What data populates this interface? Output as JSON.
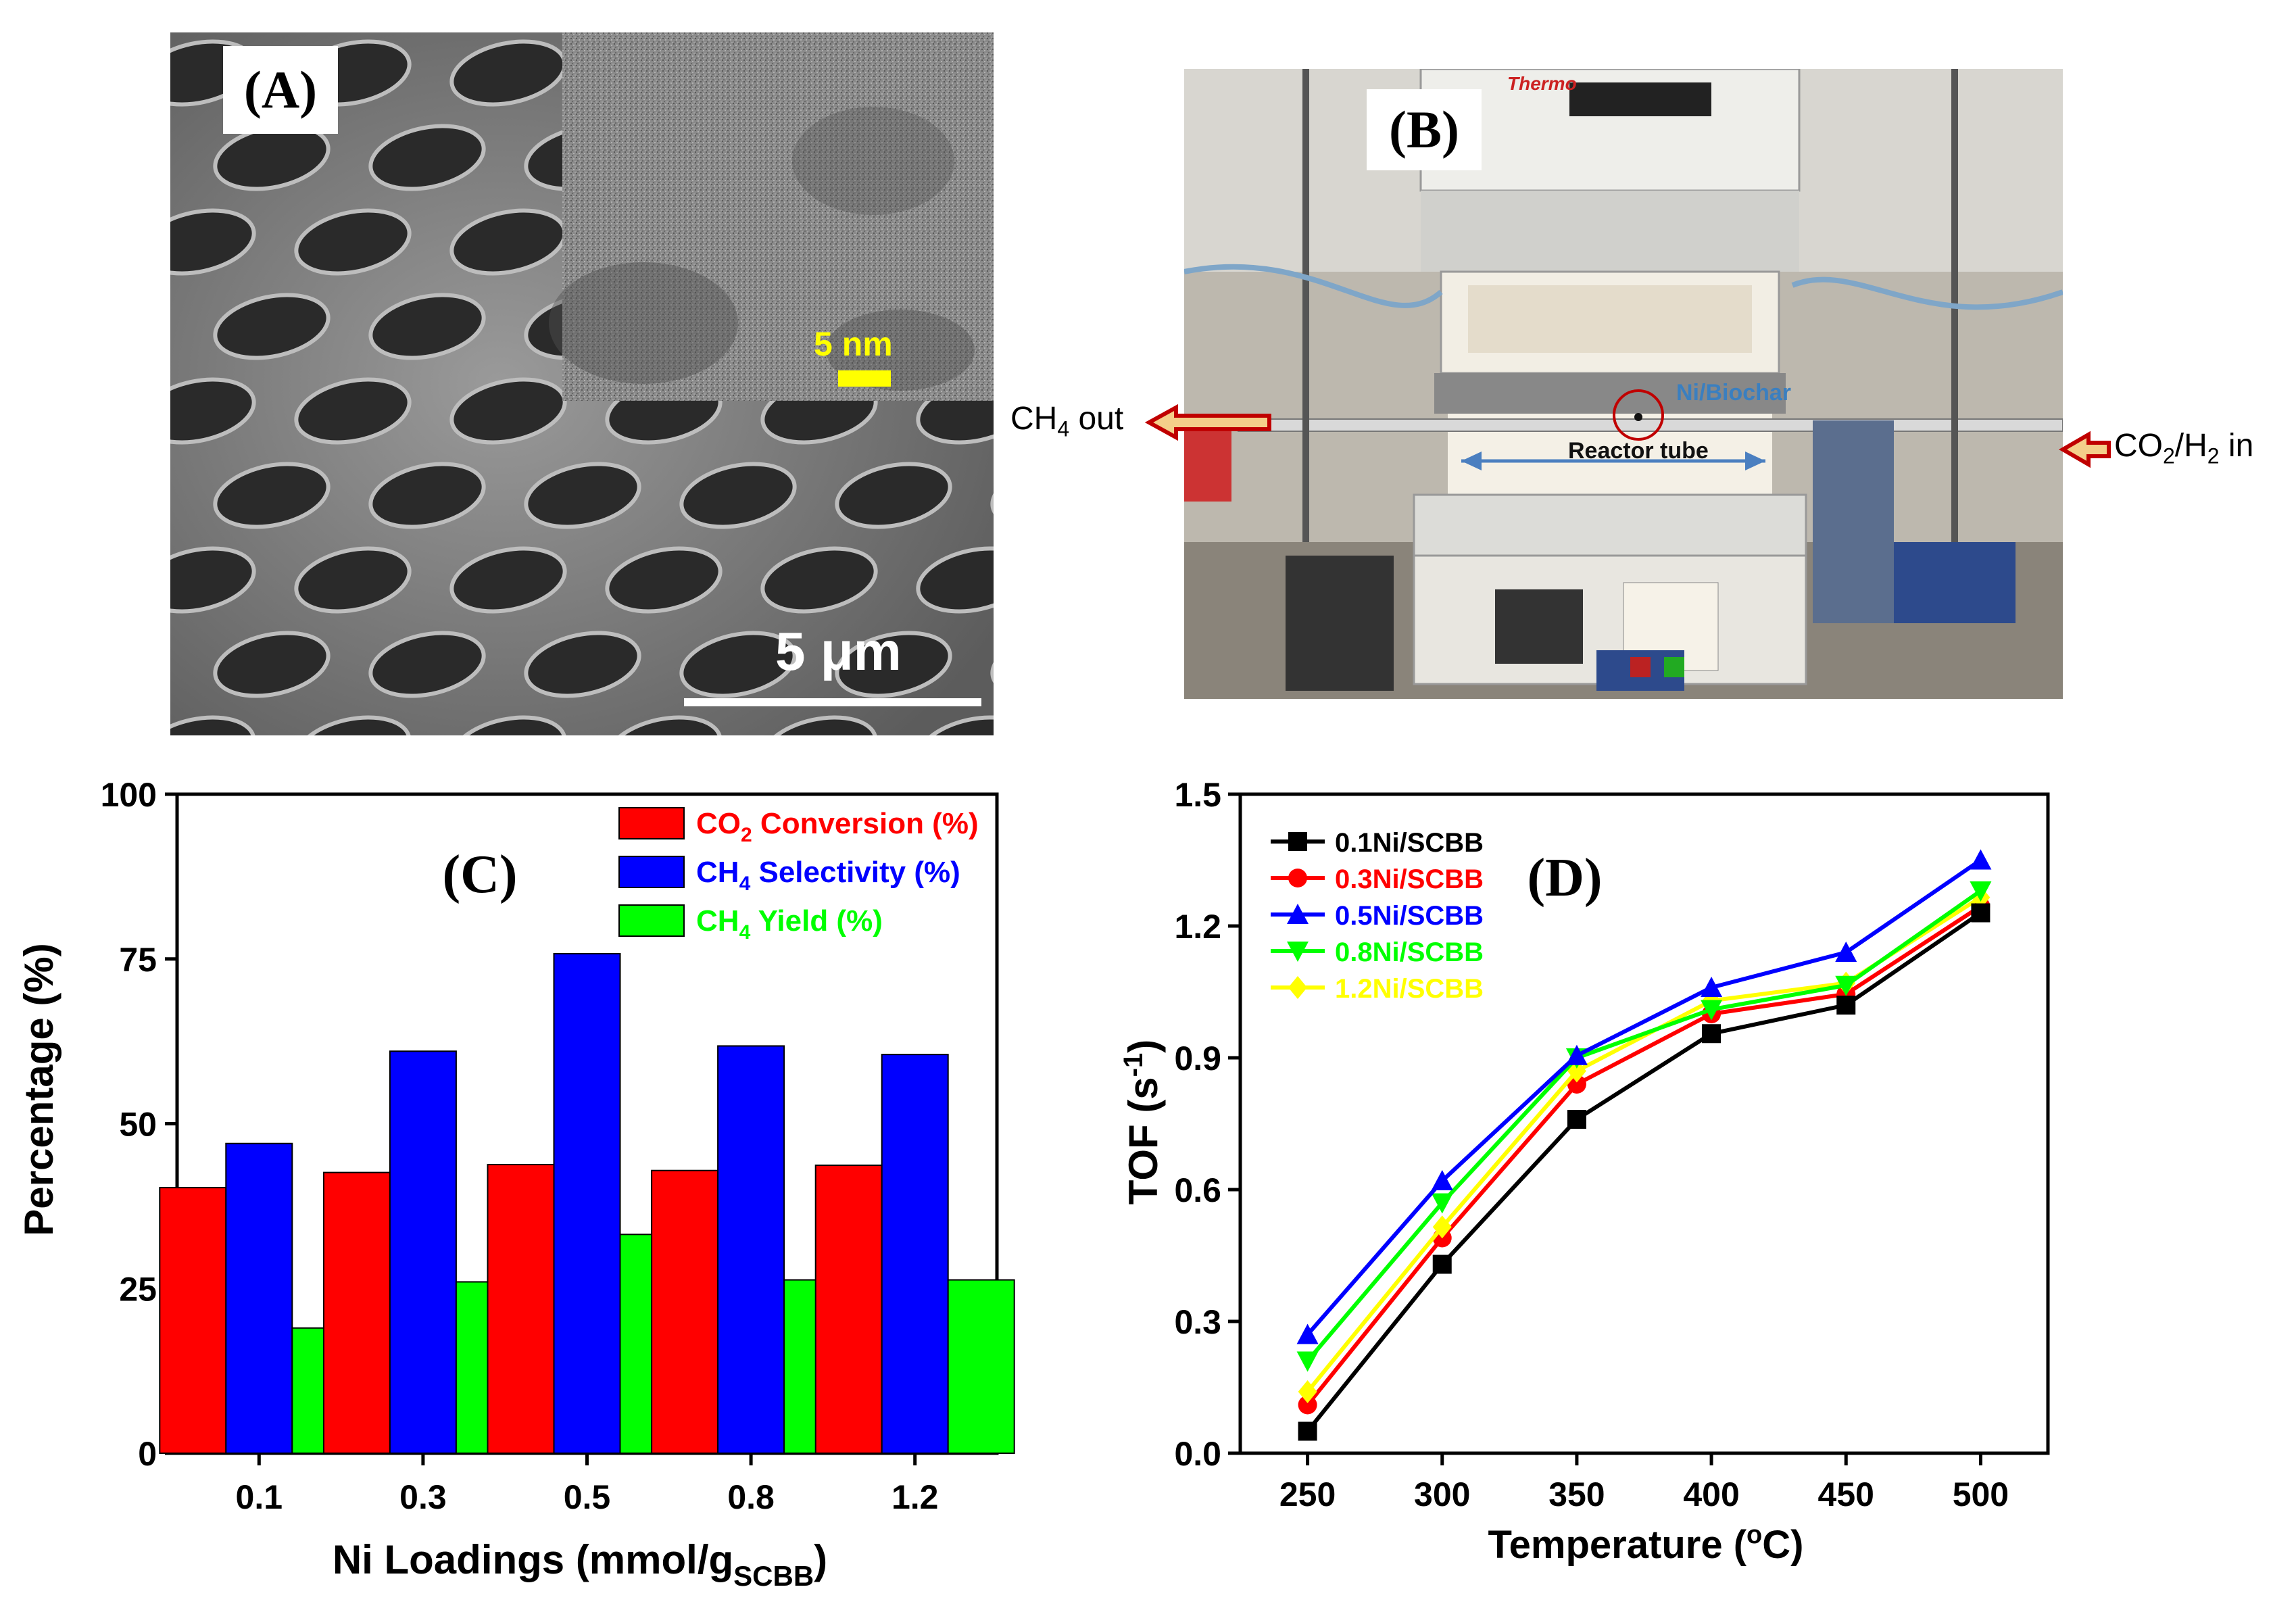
{
  "panel_a": {
    "label": "(A)",
    "inset_scale": "5 nm",
    "main_scale": "5 μm"
  },
  "panel_b": {
    "label": "(B)",
    "brand": "Thermo",
    "catalyst_label": "Ni/Biochar",
    "reactor_label": "Reactor tube",
    "outlet": {
      "prefix": "CH",
      "sub": "4",
      "suffix": " out"
    },
    "inlet": {
      "p1": "CO",
      "s1": "2",
      "p2": "/H",
      "s2": "2",
      "suffix": " in"
    }
  },
  "colors": {
    "co2": "#ff0000",
    "ch4_sel": "#0000ff",
    "ch4_yield": "#00ff00",
    "s01": "#000000",
    "s03": "#ff0000",
    "s05": "#0000ff",
    "s08": "#00ff00",
    "s12": "#ffff00",
    "arrow": "#c00000"
  },
  "chart_data": [
    {
      "panel": "(C)",
      "type": "bar",
      "categories": [
        "0.1",
        "0.3",
        "0.5",
        "0.8",
        "1.2"
      ],
      "series": [
        {
          "name": "CO2 Conversion (%)",
          "name_parts": {
            "pre": "CO",
            "sub": "2",
            "post": " Conversion (%)"
          },
          "values": [
            40.3,
            42.6,
            43.8,
            42.9,
            43.7
          ]
        },
        {
          "name": "CH4 Selectivity (%)",
          "name_parts": {
            "pre": "CH",
            "sub": "4",
            "post": " Selectivity (%)"
          },
          "values": [
            47.0,
            61.0,
            75.8,
            61.8,
            60.5
          ]
        },
        {
          "name": "CH4 Yield (%)",
          "name_parts": {
            "pre": "CH",
            "sub": "4",
            "post": " Yield (%)"
          },
          "values": [
            19.0,
            26.0,
            33.2,
            26.3,
            26.3
          ]
        }
      ],
      "xlabel": {
        "pre": "Ni Loadings (mmol/g",
        "sub": "SCBB",
        "post": ")"
      },
      "ylabel": "Percentage (%)",
      "ylim": [
        0,
        100
      ],
      "yticks": [
        "0",
        "25",
        "50",
        "75",
        "100"
      ],
      "legend": "top-right"
    },
    {
      "panel": "(D)",
      "type": "line",
      "x": [
        250,
        300,
        350,
        400,
        450,
        500
      ],
      "xticks": [
        "250",
        "300",
        "350",
        "400",
        "450",
        "500"
      ],
      "series": [
        {
          "name": "0.1Ni/SCBB",
          "marker": "square",
          "values": [
            0.05,
            0.43,
            0.76,
            0.955,
            1.02,
            1.23
          ]
        },
        {
          "name": "0.3Ni/SCBB",
          "marker": "circle",
          "values": [
            0.11,
            0.49,
            0.84,
            1.0,
            1.045,
            1.245
          ]
        },
        {
          "name": "0.5Ni/SCBB",
          "marker": "triangle-up",
          "values": [
            0.27,
            0.62,
            0.905,
            1.06,
            1.14,
            1.35
          ]
        },
        {
          "name": "0.8Ni/SCBB",
          "marker": "triangle-down",
          "values": [
            0.21,
            0.57,
            0.9,
            1.01,
            1.065,
            1.28
          ]
        },
        {
          "name": "1.2Ni/SCBB",
          "marker": "diamond",
          "values": [
            0.14,
            0.515,
            0.87,
            1.03,
            1.07,
            1.265
          ]
        }
      ],
      "xlabel": {
        "pre": "Temperature (",
        "sup": "o",
        "post": "C)"
      },
      "ylabel": {
        "pre": "TOF (s",
        "sup": "-1",
        "post": ")"
      },
      "ylim": [
        0.0,
        1.5
      ],
      "yticks": [
        "0.0",
        "0.3",
        "0.6",
        "0.9",
        "1.2",
        "1.5"
      ],
      "legend": "top-left"
    }
  ]
}
